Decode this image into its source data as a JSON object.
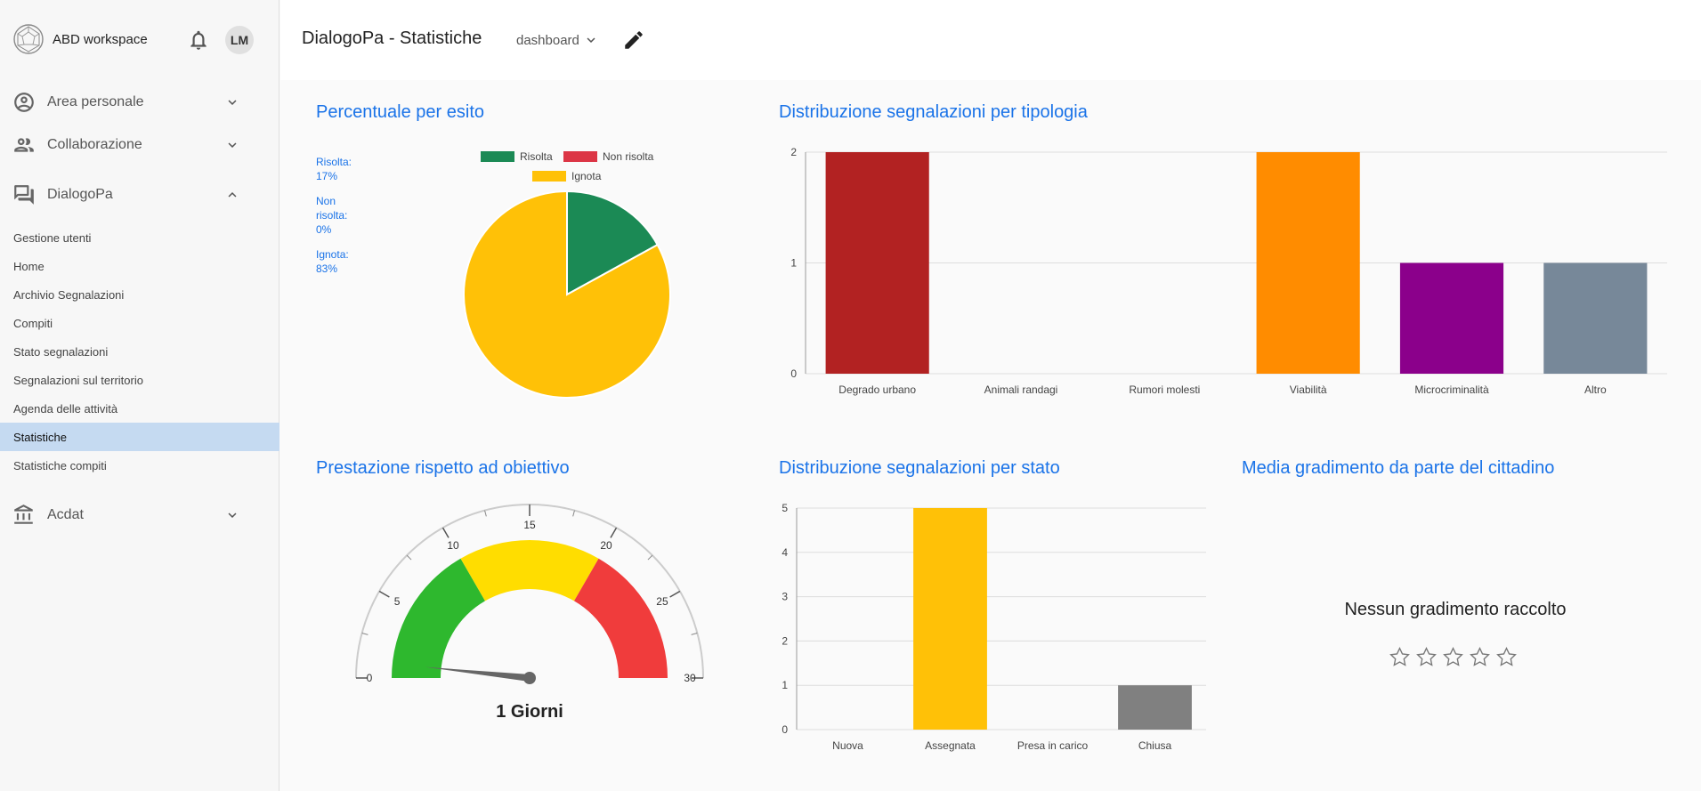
{
  "sidebar": {
    "brand": "ABD workspace",
    "user_initials": "LM",
    "groups": [
      {
        "label": "Area personale",
        "icon": "user-circle-icon",
        "expanded": false
      },
      {
        "label": "Collaborazione",
        "icon": "people-icon",
        "expanded": false
      },
      {
        "label": "DialogoPa",
        "icon": "forum-icon",
        "expanded": true
      },
      {
        "label": "Acdat",
        "icon": "bank-icon",
        "expanded": false
      }
    ],
    "items": [
      "Gestione utenti",
      "Home",
      "Archivio Segnalazioni",
      "Compiti",
      "Stato segnalazioni",
      "Segnalazioni sul territorio",
      "Agenda delle attività",
      "Statistiche",
      "Statistiche compiti"
    ],
    "active_item": "Statistiche"
  },
  "header": {
    "title": "DialogoPa - Statistiche",
    "dashboard_select": "dashboard"
  },
  "panels": {
    "pie_title": "Percentuale per esito",
    "bar1_title": "Distribuzione segnalazioni per tipologia",
    "gauge_title": "Prestazione rispetto ad obiettivo",
    "bar2_title": "Distribuzione segnalazioni per stato",
    "rating_title": "Media gradimento da parte del cittadino",
    "pie_side_labels": [
      "Risolta:",
      "17%",
      "Non",
      "risolta:",
      "0%",
      "Ignota:",
      "83%"
    ],
    "gauge_value_label": "1 Giorni",
    "rating_empty": "Nessun gradimento raccolto"
  },
  "chart_data": [
    {
      "type": "pie",
      "title": "Percentuale per esito",
      "categories": [
        "Risolta",
        "Non risolta",
        "Ignota"
      ],
      "values": [
        17,
        0,
        83
      ],
      "colors": [
        "#1b8a55",
        "#dc3545",
        "#ffc107"
      ],
      "legend": "top"
    },
    {
      "type": "bar",
      "title": "Distribuzione segnalazioni per tipologia",
      "categories": [
        "Degrado urbano",
        "Animali randagi",
        "Rumori molesti",
        "Viabilità",
        "Microcriminalità",
        "Altro"
      ],
      "values": [
        2,
        0,
        0,
        2,
        1,
        1
      ],
      "colors": [
        "#b22222",
        "#b22222",
        "#b22222",
        "#ff8c00",
        "#8b008b",
        "#778899"
      ],
      "ylim": [
        0,
        2
      ],
      "yticks": [
        0,
        1,
        2
      ],
      "grid": true
    },
    {
      "type": "gauge",
      "title": "Prestazione rispetto ad obiettivo",
      "min": 0,
      "max": 30,
      "value": 1,
      "ticks": [
        0,
        5,
        10,
        15,
        20,
        25,
        30
      ],
      "bands": [
        {
          "from": 0,
          "to": 10,
          "color": "#2eb82e"
        },
        {
          "from": 10,
          "to": 20,
          "color": "#ffdd00"
        },
        {
          "from": 20,
          "to": 30,
          "color": "#f03c3c"
        }
      ]
    },
    {
      "type": "bar",
      "title": "Distribuzione segnalazioni per stato",
      "categories": [
        "Nuova",
        "Assegnata",
        "Presa in carico",
        "Chiusa"
      ],
      "values": [
        0,
        5,
        0,
        1
      ],
      "colors": [
        "#ffc107",
        "#ffc107",
        "#ffc107",
        "#808080"
      ],
      "ylim": [
        0,
        5
      ],
      "yticks": [
        0,
        1,
        2,
        3,
        4,
        5
      ],
      "grid": true
    }
  ]
}
